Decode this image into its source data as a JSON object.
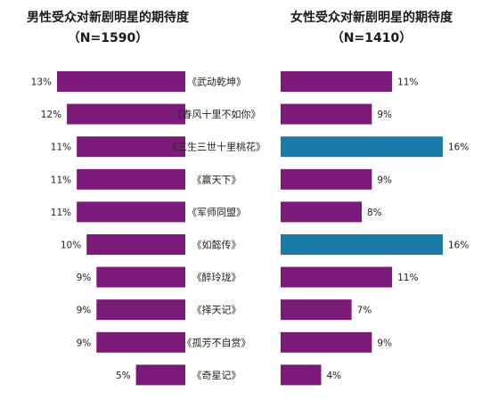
{
  "chart_data": {
    "type": "bar",
    "categories": [
      "《武动乾坤》",
      "《春风十里不如你》",
      "《三生三世十里桃花》",
      "《赢天下》",
      "《军师同盟》",
      "《如懿传》",
      "《醉玲珑》",
      "《择天记》",
      "《孤芳不自赏》",
      "《奇星记》"
    ],
    "panels": [
      {
        "title": "男性受众对新剧明星的期待度",
        "subtitle": "（N=1590）",
        "values": [
          13,
          12,
          11,
          11,
          11,
          10,
          9,
          9,
          9,
          5
        ],
        "value_labels": [
          "13%",
          "12%",
          "11%",
          "11%",
          "11%",
          "10%",
          "9%",
          "9%",
          "9%",
          "5%"
        ],
        "colors": [
          "#7b1a78",
          "#7b1a78",
          "#7b1a78",
          "#7b1a78",
          "#7b1a78",
          "#7b1a78",
          "#7b1a78",
          "#7b1a78",
          "#7b1a78",
          "#7b1a78"
        ],
        "xlim": [
          0,
          13
        ]
      },
      {
        "title": "女性受众对新剧明星的期待度",
        "subtitle": "（N=1410）",
        "values": [
          11,
          9,
          16,
          9,
          8,
          16,
          11,
          7,
          9,
          4
        ],
        "value_labels": [
          "11%",
          "9%",
          "16%",
          "9%",
          "8%",
          "16%",
          "11%",
          "7%",
          "9%",
          "4%"
        ],
        "colors": [
          "#7b1a78",
          "#7b1a78",
          "#1a7aa8",
          "#7b1a78",
          "#7b1a78",
          "#1a7aa8",
          "#7b1a78",
          "#7b1a78",
          "#7b1a78",
          "#7b1a78"
        ],
        "xlim": [
          0,
          16
        ]
      }
    ],
    "grid": false,
    "legend": "none"
  }
}
